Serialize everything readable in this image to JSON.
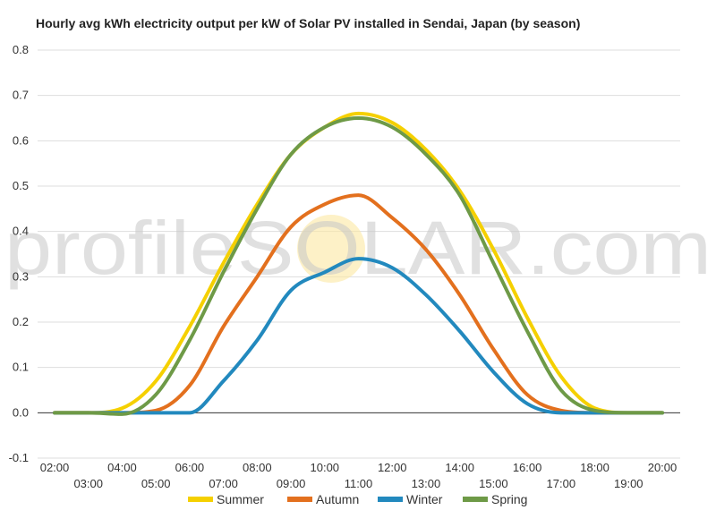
{
  "chart_data": {
    "type": "line",
    "title": "Hourly avg kWh electricity output per kW of Solar PV installed in Sendai, Japan (by season)",
    "xlabel": "",
    "ylabel": "",
    "ylim": [
      -0.1,
      0.8
    ],
    "yticks": [
      "0.8",
      "0.7",
      "0.6",
      "0.5",
      "0.4",
      "0.3",
      "0.2",
      "0.1",
      "0.0",
      "-0.1"
    ],
    "categories": [
      "02:00",
      "03:00",
      "04:00",
      "05:00",
      "06:00",
      "07:00",
      "08:00",
      "09:00",
      "10:00",
      "11:00",
      "12:00",
      "13:00",
      "14:00",
      "15:00",
      "16:00",
      "17:00",
      "18:00",
      "19:00",
      "20:00"
    ],
    "grid": true,
    "legend": "bottom",
    "series": [
      {
        "name": "Summer",
        "color": "#f5d000",
        "values": [
          0,
          0,
          0.01,
          0.07,
          0.19,
          0.33,
          0.46,
          0.57,
          0.63,
          0.66,
          0.64,
          0.58,
          0.49,
          0.36,
          0.21,
          0.08,
          0.01,
          0,
          0
        ]
      },
      {
        "name": "Autumn",
        "color": "#e3701e",
        "values": [
          0,
          0,
          0,
          0.005,
          0.06,
          0.19,
          0.3,
          0.41,
          0.46,
          0.48,
          0.43,
          0.36,
          0.26,
          0.14,
          0.04,
          0.005,
          0,
          0,
          0
        ]
      },
      {
        "name": "Winter",
        "color": "#2289be",
        "values": [
          0,
          0,
          0,
          0,
          0,
          0.07,
          0.16,
          0.27,
          0.31,
          0.34,
          0.32,
          0.26,
          0.18,
          0.09,
          0.02,
          0,
          0,
          0,
          0
        ]
      },
      {
        "name": "Spring",
        "color": "#6e9a47",
        "values": [
          0,
          0,
          -0.003,
          0.04,
          0.16,
          0.31,
          0.45,
          0.57,
          0.63,
          0.65,
          0.63,
          0.57,
          0.48,
          0.33,
          0.18,
          0.05,
          0.005,
          0,
          0
        ]
      }
    ]
  },
  "watermark": {
    "text": "profileSOLAR.com",
    "color": "#c8c8c8",
    "sun_color": "#fbe7a1"
  },
  "colors": {
    "grid": "#dddddd",
    "zero_line": "#333333",
    "background": "#ffffff"
  }
}
